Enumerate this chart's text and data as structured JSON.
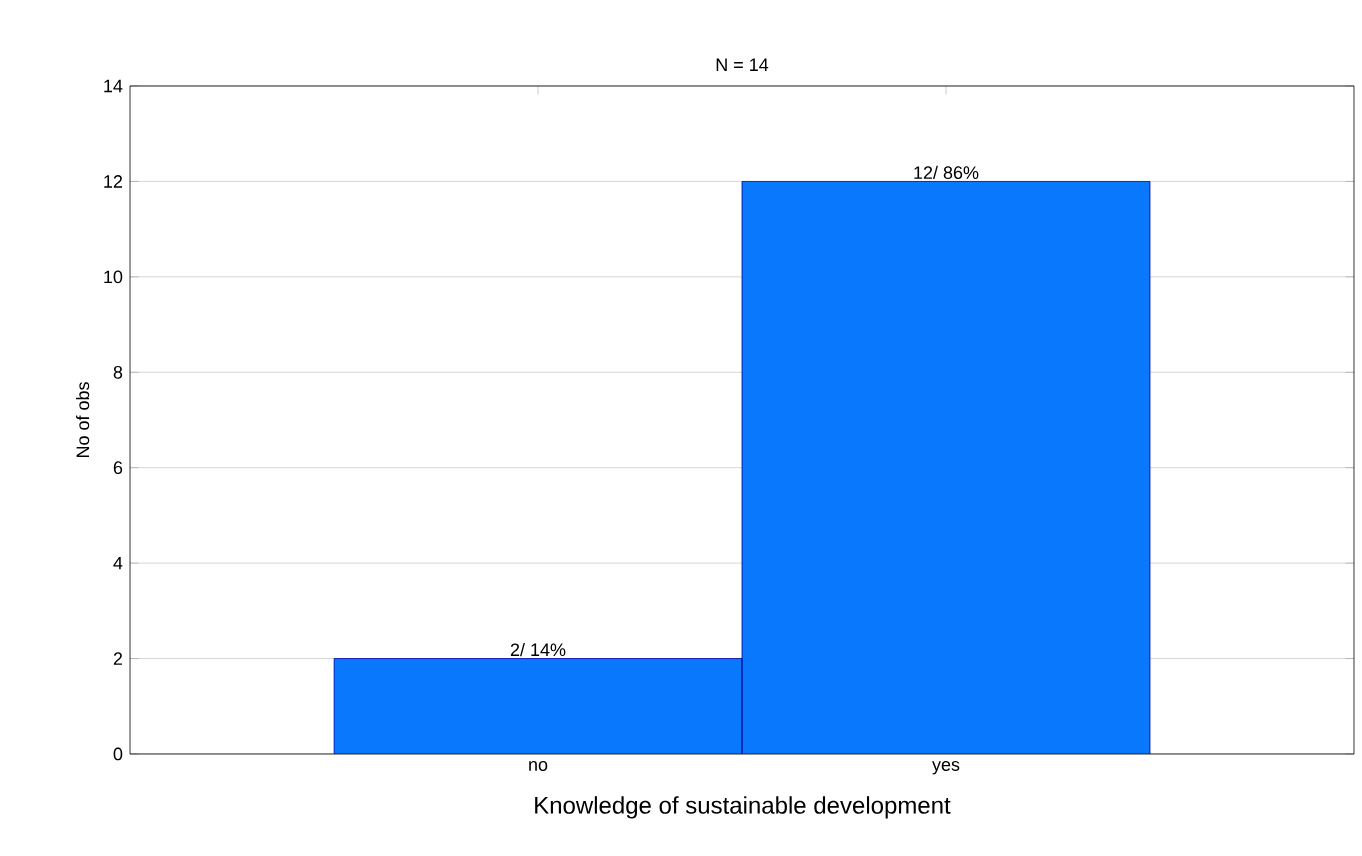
{
  "chart_data": {
    "type": "bar",
    "title": "N = 14",
    "xlabel": "Knowledge of sustainable development",
    "ylabel": "No of obs",
    "categories": [
      "no",
      "yes"
    ],
    "values": [
      2,
      12
    ],
    "color": "#0a78fc",
    "value_labels": [
      "2/ 14%",
      "12/ 86%"
    ],
    "ylim": [
      0,
      14
    ],
    "yticks": [
      0,
      2,
      4,
      6,
      8,
      10,
      12,
      14
    ],
    "grid": "y"
  }
}
